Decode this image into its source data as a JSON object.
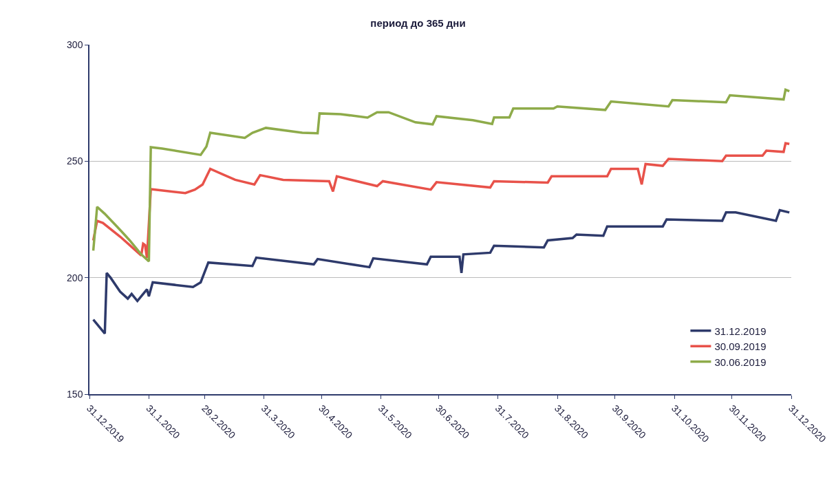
{
  "chart_data": {
    "type": "line",
    "title": "период до 365 дни",
    "xlim": [
      "2019-12-31",
      "2020-12-31"
    ],
    "xticks": [
      {
        "value": "2019-12-31",
        "label": "31.12.2019"
      },
      {
        "value": "2020-01-31",
        "label": "31.1.2020"
      },
      {
        "value": "2020-02-29",
        "label": "29.2.2020"
      },
      {
        "value": "2020-03-31",
        "label": "31.3.2020"
      },
      {
        "value": "2020-04-30",
        "label": "30.4.2020"
      },
      {
        "value": "2020-05-31",
        "label": "31.5.2020"
      },
      {
        "value": "2020-06-30",
        "label": "30.6.2020"
      },
      {
        "value": "2020-07-31",
        "label": "31.7.2020"
      },
      {
        "value": "2020-08-31",
        "label": "31.8.2020"
      },
      {
        "value": "2020-09-30",
        "label": "30.9.2020"
      },
      {
        "value": "2020-10-31",
        "label": "31.10.2020"
      },
      {
        "value": "2020-11-30",
        "label": "30.11.2020"
      },
      {
        "value": "2020-12-31",
        "label": "31.12.2020"
      }
    ],
    "ylim": [
      150,
      300
    ],
    "yticks": [
      150,
      200,
      250,
      300
    ],
    "grid": "y",
    "legend": "bottom right",
    "marker": "none",
    "line_style": "solid",
    "series": [
      {
        "name": "31.12.2019",
        "color": "#2e3a6b",
        "x": [
          "2020-01-02",
          "2020-01-08",
          "2020-01-09",
          "2020-01-11",
          "2020-01-16",
          "2020-01-20",
          "2020-01-22",
          "2020-01-25",
          "2020-01-28",
          "2020-01-30",
          "2020-01-31",
          "2020-02-02",
          "2020-02-23",
          "2020-02-27",
          "2020-03-02",
          "2020-03-25",
          "2020-03-27",
          "2020-04-26",
          "2020-04-28",
          "2020-05-25",
          "2020-05-27",
          "2020-06-24",
          "2020-06-26",
          "2020-07-11",
          "2020-07-12",
          "2020-07-13",
          "2020-07-27",
          "2020-07-29",
          "2020-08-24",
          "2020-08-26",
          "2020-09-08",
          "2020-09-10",
          "2020-09-24",
          "2020-09-26",
          "2020-10-25",
          "2020-10-27",
          "2020-11-25",
          "2020-11-27",
          "2020-12-02",
          "2020-12-23",
          "2020-12-25",
          "2020-12-30"
        ],
        "values": [
          182,
          176,
          202,
          200,
          194,
          191,
          193,
          190,
          193,
          195,
          192,
          198,
          196,
          198,
          206.5,
          205,
          208.6,
          205.7,
          208,
          204.5,
          208.3,
          205.7,
          209,
          209,
          202,
          210,
          210.7,
          213.7,
          213,
          216,
          217,
          218.5,
          218,
          222,
          222,
          225,
          224.4,
          228,
          228,
          224.4,
          229,
          228
        ]
      },
      {
        "name": "30.09.2019",
        "color": "#e8524a",
        "x": [
          "2020-01-02",
          "2020-01-04",
          "2020-01-07",
          "2020-01-16",
          "2020-01-23",
          "2020-01-27",
          "2020-01-28",
          "2020-01-29",
          "2020-01-30",
          "2020-02-01",
          "2020-02-19",
          "2020-02-24",
          "2020-02-28",
          "2020-03-03",
          "2020-03-16",
          "2020-03-26",
          "2020-03-29",
          "2020-04-10",
          "2020-05-04",
          "2020-05-06",
          "2020-05-08",
          "2020-05-29",
          "2020-06-01",
          "2020-06-26",
          "2020-06-29",
          "2020-07-27",
          "2020-07-29",
          "2020-08-26",
          "2020-08-28",
          "2020-09-26",
          "2020-09-28",
          "2020-10-12",
          "2020-10-14",
          "2020-10-16",
          "2020-10-25",
          "2020-10-28",
          "2020-11-25",
          "2020-11-27",
          "2020-12-16",
          "2020-12-18",
          "2020-12-27",
          "2020-12-28",
          "2020-12-30"
        ],
        "values": [
          216,
          224.4,
          223.5,
          217.6,
          212.5,
          209.5,
          214.6,
          214,
          208.5,
          238,
          236.3,
          237.8,
          240,
          246.7,
          242,
          240,
          244,
          242,
          241.4,
          237,
          243.5,
          239.3,
          241.4,
          237.8,
          241,
          238.7,
          241.4,
          240.8,
          243.5,
          243.5,
          246.7,
          246.7,
          240,
          248.8,
          248,
          251,
          250,
          252.4,
          252.4,
          254.5,
          254,
          257.7,
          257.4
        ]
      },
      {
        "name": "30.06.2019",
        "color": "#8eab4a",
        "x": [
          "2020-01-02",
          "2020-01-04",
          "2020-01-08",
          "2020-01-16",
          "2020-01-21",
          "2020-01-27",
          "2020-01-31",
          "2020-02-01",
          "2020-02-07",
          "2020-02-27",
          "2020-03-01",
          "2020-03-03",
          "2020-03-21",
          "2020-03-25",
          "2020-04-01",
          "2020-04-20",
          "2020-04-28",
          "2020-04-29",
          "2020-05-10",
          "2020-05-24",
          "2020-05-29",
          "2020-06-04",
          "2020-06-18",
          "2020-06-27",
          "2020-06-29",
          "2020-07-18",
          "2020-07-28",
          "2020-07-29",
          "2020-08-06",
          "2020-08-08",
          "2020-08-29",
          "2020-08-31",
          "2020-09-25",
          "2020-09-28",
          "2020-10-28",
          "2020-10-30",
          "2020-11-27",
          "2020-11-29",
          "2020-12-27",
          "2020-12-28",
          "2020-12-30"
        ],
        "values": [
          211.6,
          230.4,
          227.4,
          220.5,
          216,
          210,
          207,
          256,
          255.4,
          252.7,
          256.3,
          262.2,
          260,
          262.2,
          264.3,
          262.2,
          262,
          270.5,
          270.2,
          268.7,
          271,
          271,
          266.7,
          265.8,
          269.3,
          267.6,
          266,
          268.8,
          268.8,
          272.6,
          272.6,
          273.5,
          272,
          275.6,
          273.5,
          276.2,
          275.3,
          278.3,
          276.5,
          280.7,
          280
        ]
      }
    ]
  }
}
